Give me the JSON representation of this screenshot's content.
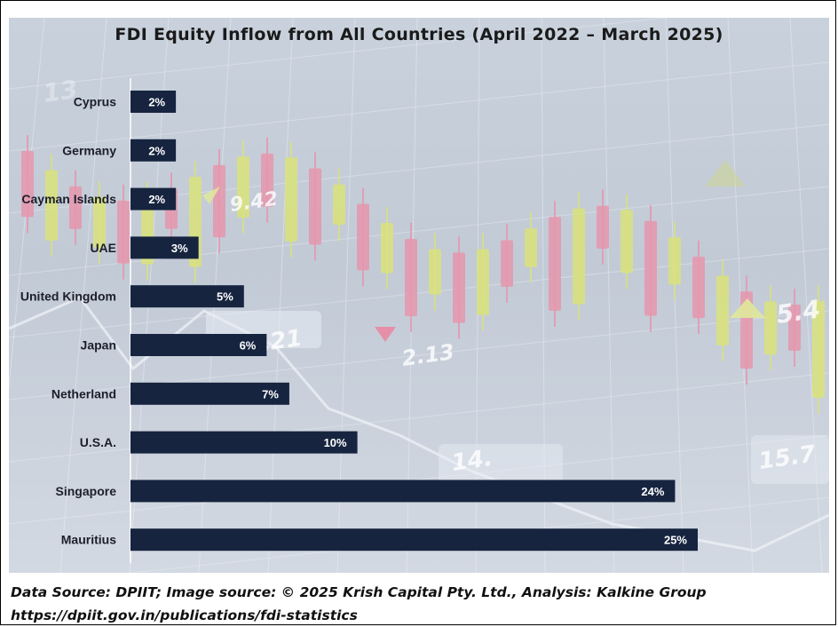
{
  "chart_data": {
    "type": "bar",
    "orientation": "horizontal",
    "title": "FDI Equity Inflow from All Countries (April 2022 – March 2025)",
    "categories": [
      "Cyprus",
      "Germany",
      "Cayman Islands",
      "UAE",
      "United Kingdom",
      "Japan",
      "Netherland",
      "U.S.A.",
      "Singapore",
      "Mauritius"
    ],
    "values": [
      2,
      2,
      2,
      3,
      5,
      6,
      7,
      10,
      24,
      25
    ],
    "value_labels": [
      "2%",
      "2%",
      "2%",
      "3%",
      "5%",
      "6%",
      "7%",
      "10%",
      "24%",
      "25%"
    ],
    "xlim": [
      0,
      25
    ],
    "bar_color": "#16243f",
    "grid": false,
    "legend": "none"
  },
  "background": {
    "numbers": [
      "13",
      "9.42",
      "2.13",
      "5.4",
      "12.21",
      "14.",
      "15.7"
    ]
  },
  "footer": {
    "line1": "Data Source: DPIIT; Image source: © 2025 Krish Capital Pty. Ltd., Analysis: Kalkine Group",
    "line2": "https://dpiit.gov.in/publications/fdi-statistics"
  }
}
